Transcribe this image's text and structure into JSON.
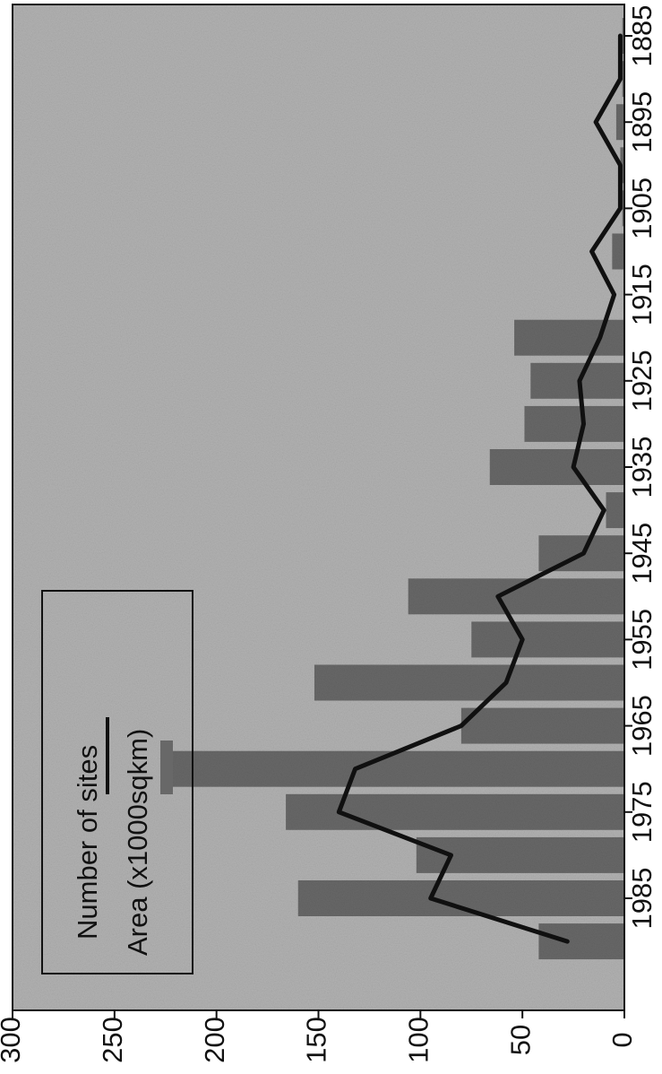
{
  "chart_data": {
    "type": "bar",
    "orientation": "rotated-90-clockwise",
    "title": "",
    "xlabel": "",
    "ylabel": "",
    "ylim": [
      0,
      300
    ],
    "yticks": [
      0,
      50,
      100,
      150,
      200,
      250,
      300
    ],
    "x": [
      1885,
      1890,
      1895,
      1900,
      1905,
      1910,
      1915,
      1920,
      1925,
      1930,
      1935,
      1940,
      1945,
      1950,
      1955,
      1960,
      1965,
      1970,
      1975,
      1980,
      1985,
      1990
    ],
    "xtick_labels": [
      "1885",
      "1895",
      "1905",
      "1915",
      "1925",
      "1935",
      "1945",
      "1955",
      "1965",
      "1975",
      "1985"
    ],
    "series": [
      {
        "name": "Area (x1000sqkm)",
        "kind": "bar",
        "values": [
          1,
          1,
          4,
          2,
          1,
          6,
          0,
          54,
          46,
          49,
          66,
          9,
          42,
          106,
          75,
          152,
          80,
          227,
          166,
          102,
          160,
          42
        ]
      },
      {
        "name": "Number of sites",
        "kind": "line",
        "values": [
          2,
          2,
          14,
          2,
          2,
          16,
          5,
          12,
          22,
          20,
          25,
          10,
          20,
          62,
          50,
          58,
          80,
          132,
          140,
          85,
          95,
          28
        ]
      }
    ],
    "legend": {
      "placement": "top-left",
      "entries": [
        "Number of sites",
        "Area (x1000sqkm)"
      ]
    },
    "grid": false,
    "colors": {
      "background": "#b2b2b2",
      "bar_fill": "#686868",
      "line": "#101010",
      "frame": "#111111"
    }
  }
}
